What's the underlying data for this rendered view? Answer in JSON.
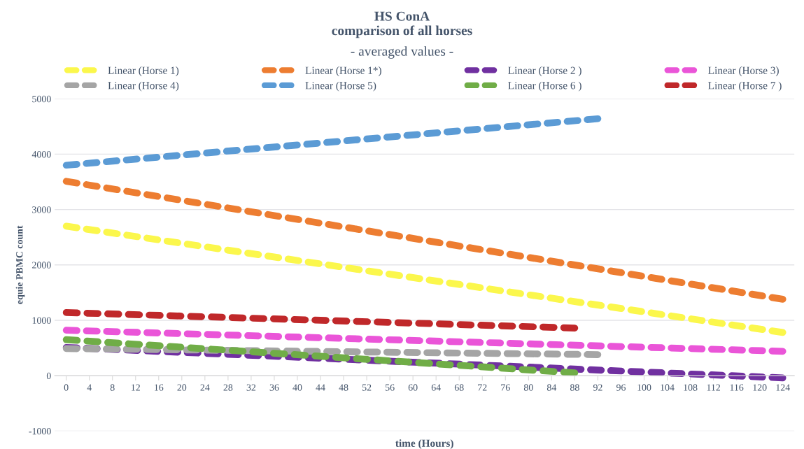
{
  "chart_data": {
    "type": "line",
    "title": "HS ConA\ncomparison of all horses",
    "subtitle": "- averaged values -",
    "xlabel": "time (Hours)",
    "ylabel": "equie PBMC count",
    "xlim": [
      -2,
      126
    ],
    "xticks": [
      0,
      4,
      8,
      12,
      16,
      20,
      24,
      28,
      32,
      36,
      40,
      44,
      48,
      52,
      56,
      60,
      64,
      68,
      72,
      76,
      80,
      84,
      88,
      92,
      96,
      100,
      104,
      108,
      112,
      116,
      120,
      124
    ],
    "ylim": [
      -1000,
      5000
    ],
    "yticks": [
      -1000,
      0,
      1000,
      2000,
      3000,
      4000,
      5000
    ],
    "grid": "y",
    "legend": "top",
    "line_style": "dashed",
    "marker": "none",
    "series": [
      {
        "name": "Linear (Horse 1)",
        "color": "#fbf74c",
        "x": [
          0,
          124
        ],
        "values": [
          2700,
          780
        ]
      },
      {
        "name": "Linear (Horse 1*)",
        "color": "#ed7d31",
        "x": [
          0,
          124
        ],
        "values": [
          3510,
          1380
        ]
      },
      {
        "name": "Linear (Horse 2 )",
        "color": "#7030a0",
        "x": [
          0,
          124
        ],
        "values": [
          510,
          -40
        ]
      },
      {
        "name": "Linear (Horse 3)",
        "color": "#ea55d8",
        "x": [
          0,
          124
        ],
        "values": [
          820,
          440
        ]
      },
      {
        "name": "Linear (Horse 4)",
        "color": "#a5a5a5",
        "x": [
          0,
          92
        ],
        "values": [
          490,
          380
        ]
      },
      {
        "name": "Linear (Horse 5)",
        "color": "#5b9bd5",
        "x": [
          0,
          92
        ],
        "values": [
          3800,
          4640
        ]
      },
      {
        "name": "Linear (Horse 6 )",
        "color": "#70ad47",
        "x": [
          0,
          88
        ],
        "values": [
          650,
          50
        ]
      },
      {
        "name": "Linear (Horse 7 )",
        "color": "#c0282a",
        "x": [
          0,
          88
        ],
        "values": [
          1140,
          860
        ]
      }
    ]
  }
}
